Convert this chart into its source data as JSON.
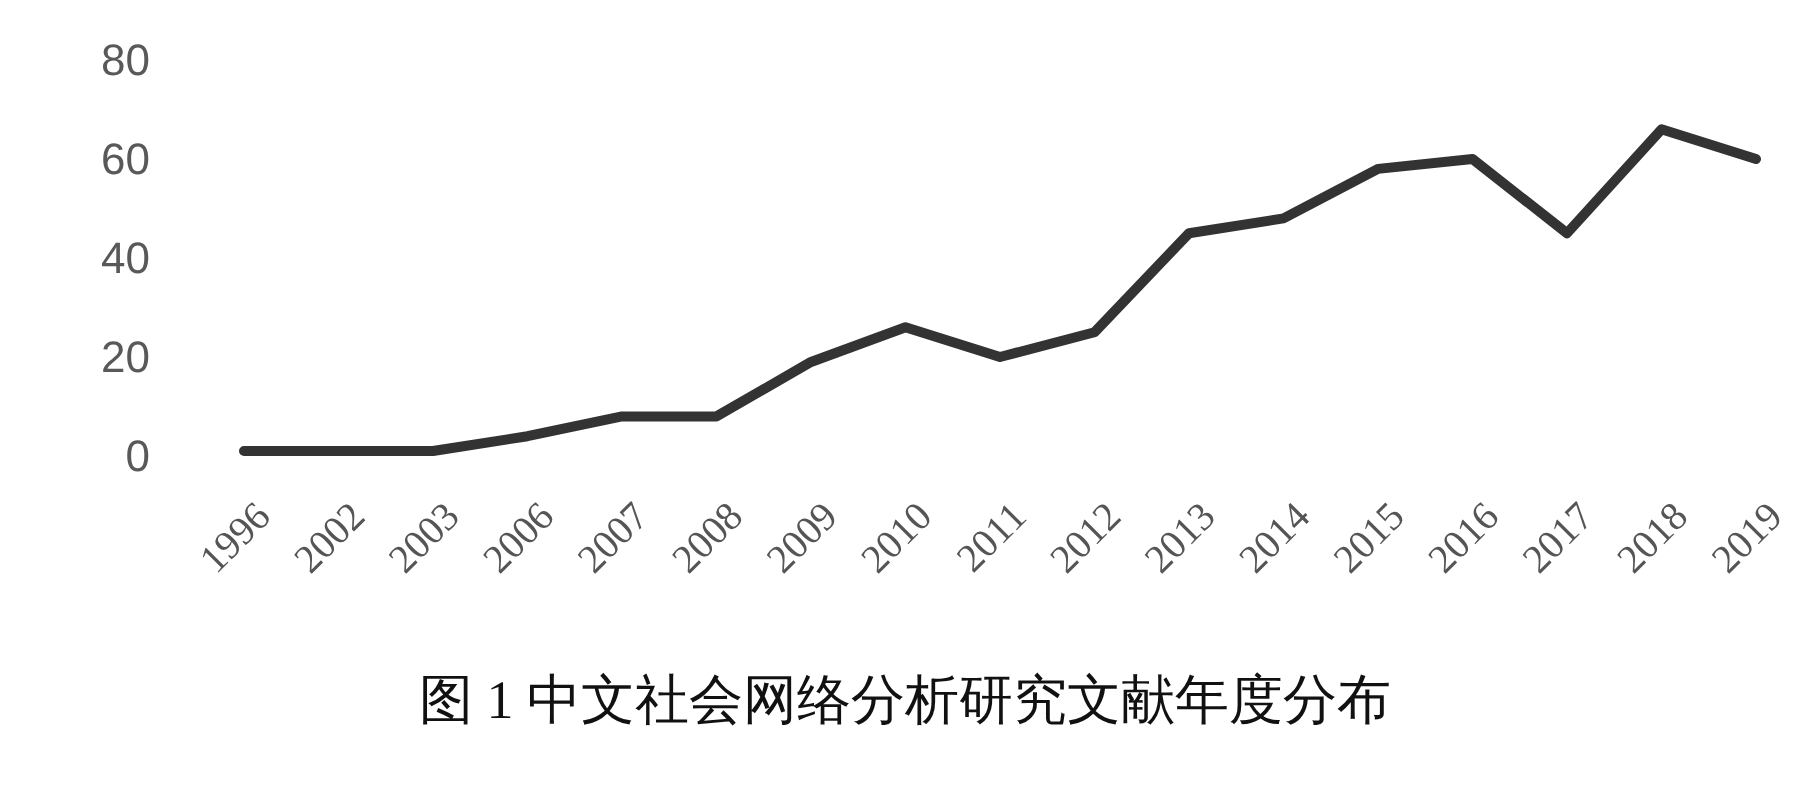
{
  "chart_data": {
    "type": "line",
    "title": "图 1 中文社会网络分析研究文献年度分布",
    "categories": [
      "1996",
      "2002",
      "2003",
      "2006",
      "2007",
      "2008",
      "2009",
      "2010",
      "2011",
      "2012",
      "2013",
      "2014",
      "2015",
      "2016",
      "2017",
      "2018",
      "2019"
    ],
    "values": [
      1,
      1,
      1,
      4,
      8,
      8,
      19,
      26,
      20,
      25,
      45,
      48,
      58,
      60,
      45,
      66,
      60
    ],
    "color": "#333333",
    "ylim": [
      0,
      80
    ],
    "yticks": [
      0,
      20,
      40,
      60,
      80
    ],
    "grid": false,
    "legend": false,
    "marker": "none",
    "line_style": "solid"
  }
}
